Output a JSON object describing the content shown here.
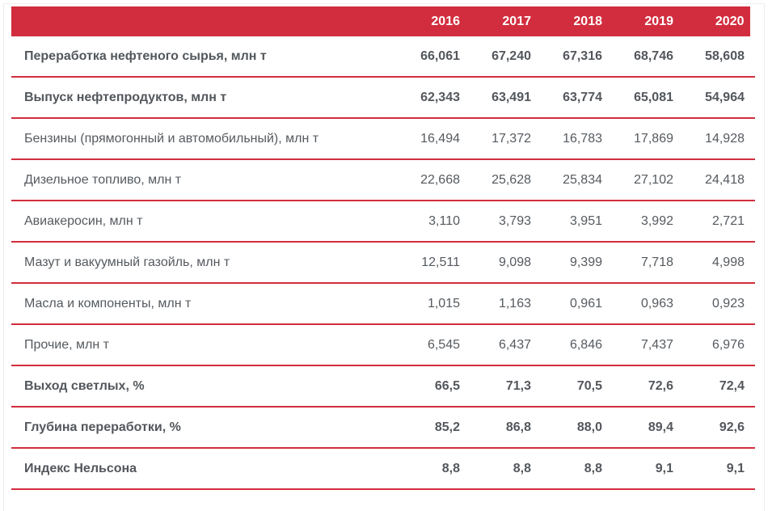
{
  "colors": {
    "accent_red": "#d22d3e",
    "header_text": "#ffffff",
    "body_text": "#555a5f",
    "frame_border": "#ececec"
  },
  "chart_data": {
    "type": "table",
    "columns": [
      "",
      "2016",
      "2017",
      "2018",
      "2019",
      "2020"
    ],
    "rows": [
      {
        "label": "Переработка нефтеного сырья, млн т",
        "emphasis": true,
        "values": [
          "66,061",
          "67,240",
          "67,316",
          "68,746",
          "58,608"
        ]
      },
      {
        "label": "Выпуск нефтепродуктов, млн т",
        "emphasis": true,
        "values": [
          "62,343",
          "63,491",
          "63,774",
          "65,081",
          "54,964"
        ]
      },
      {
        "label": "Бензины (прямогонный и автомобильный), млн т",
        "emphasis": false,
        "values": [
          "16,494",
          "17,372",
          "16,783",
          "17,869",
          "14,928"
        ]
      },
      {
        "label": "Дизельное топливо, млн т",
        "emphasis": false,
        "values": [
          "22,668",
          "25,628",
          "25,834",
          "27,102",
          "24,418"
        ]
      },
      {
        "label": "Авиакеросин, млн т",
        "emphasis": false,
        "values": [
          "3,110",
          "3,793",
          "3,951",
          "3,992",
          "2,721"
        ]
      },
      {
        "label": "Мазут и вакуумный газойль, млн т",
        "emphasis": false,
        "values": [
          "12,511",
          "9,098",
          "9,399",
          "7,718",
          "4,998"
        ]
      },
      {
        "label": "Масла и компоненты, млн т",
        "emphasis": false,
        "values": [
          "1,015",
          "1,163",
          "0,961",
          "0,963",
          "0,923"
        ]
      },
      {
        "label": "Прочие, млн т",
        "emphasis": false,
        "values": [
          "6,545",
          "6,437",
          "6,846",
          "7,437",
          "6,976"
        ]
      },
      {
        "label": "Выход светлых, %",
        "emphasis": true,
        "values": [
          "66,5",
          "71,3",
          "70,5",
          "72,6",
          "72,4"
        ]
      },
      {
        "label": "Глубина переработки, %",
        "emphasis": true,
        "values": [
          "85,2",
          "86,8",
          "88,0",
          "89,4",
          "92,6"
        ]
      },
      {
        "label": "Индекс Нельсона",
        "emphasis": true,
        "values": [
          "8,8",
          "8,8",
          "8,8",
          "9,1",
          "9,1"
        ]
      }
    ]
  }
}
